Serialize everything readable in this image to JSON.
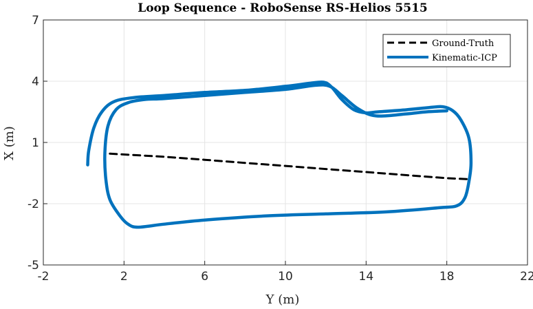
{
  "chart_data": {
    "type": "line",
    "title": "Loop Sequence - RoboSense RS-Helios 5515",
    "xlabel": "Y (m)",
    "ylabel": "X (m)",
    "xlim": [
      -2,
      22
    ],
    "ylim": [
      -5,
      7
    ],
    "xticks": [
      "-2",
      "2",
      "6",
      "10",
      "14",
      "18",
      "22"
    ],
    "yticks": [
      "-5",
      "-2",
      "1",
      "4",
      "7"
    ],
    "xtick_values": [
      -2,
      2,
      6,
      10,
      14,
      18,
      22
    ],
    "ytick_values": [
      -5,
      -2,
      1,
      4,
      7
    ],
    "grid": true,
    "legend_position": "top-right",
    "series": [
      {
        "name": "Ground-Truth",
        "color": "#000000",
        "style": "dashed",
        "x": [
          1.3,
          4,
          6,
          8,
          10,
          12,
          14,
          16,
          18,
          19.1
        ],
        "y": [
          0.45,
          0.3,
          0.15,
          0,
          -0.15,
          -0.3,
          -0.45,
          -0.6,
          -0.75,
          -0.8
        ]
      },
      {
        "name": "Kinematic-ICP",
        "color": "#0072BD",
        "style": "solid",
        "x": [
          0.2,
          0.25,
          0.5,
          0.9,
          1.5,
          2.5,
          4,
          6,
          8,
          10,
          11.2,
          11.9,
          12.3,
          12.8,
          13.4,
          14,
          14.6,
          16,
          17,
          17.8,
          18.3,
          18.7,
          19.1,
          19.2,
          19.1,
          18.9,
          18.5,
          17.6,
          15,
          12,
          9,
          6,
          4,
          2.7,
          2.2,
          1.8,
          1.3,
          1.1,
          1.05,
          1.2,
          1.6,
          2.2,
          3,
          4,
          6,
          8,
          10,
          11.5,
          12.2,
          12.8,
          13.6,
          14.5,
          16,
          17,
          18
        ],
        "y": [
          -0.1,
          0.6,
          1.7,
          2.5,
          3.0,
          3.2,
          3.3,
          3.45,
          3.55,
          3.75,
          3.9,
          3.95,
          3.7,
          3.1,
          2.6,
          2.45,
          2.5,
          2.6,
          2.7,
          2.75,
          2.55,
          2.1,
          1.2,
          0,
          -0.9,
          -1.7,
          -2.1,
          -2.2,
          -2.4,
          -2.5,
          -2.6,
          -2.8,
          -3.0,
          -3.15,
          -3.0,
          -2.6,
          -1.8,
          -0.8,
          0.5,
          1.8,
          2.6,
          2.95,
          3.1,
          3.15,
          3.3,
          3.45,
          3.6,
          3.8,
          3.75,
          3.3,
          2.65,
          2.3,
          2.4,
          2.5,
          2.55
        ]
      }
    ]
  }
}
